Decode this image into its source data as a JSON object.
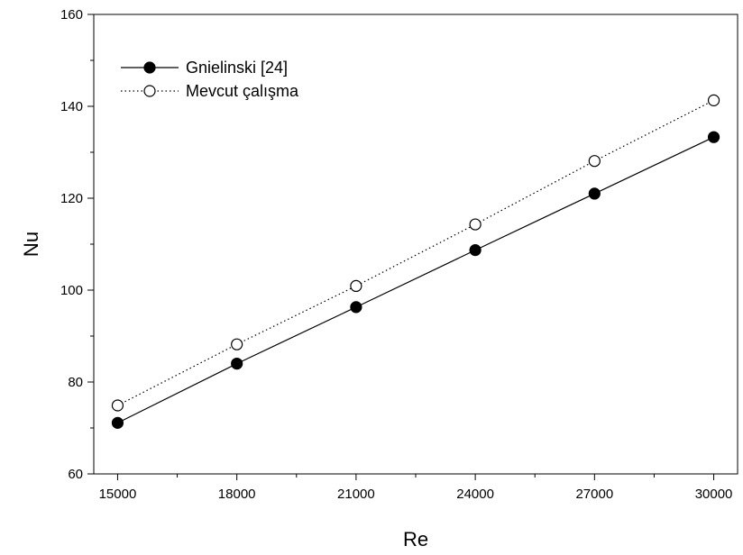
{
  "chart_data": {
    "type": "line",
    "title": "",
    "xlabel": "Re",
    "ylabel": "Nu",
    "x": [
      15000,
      18000,
      21000,
      24000,
      27000,
      30000
    ],
    "xlim": [
      14400,
      30600
    ],
    "ylim": [
      60,
      160
    ],
    "xticks": [
      15000,
      18000,
      21000,
      24000,
      27000,
      30000
    ],
    "xtick_labels": [
      "15000",
      "18000",
      "21000",
      "24000",
      "27000",
      "30000"
    ],
    "yticks": [
      60,
      80,
      100,
      120,
      140,
      160
    ],
    "ytick_labels": [
      "60",
      "80",
      "100",
      "120",
      "140",
      "160"
    ],
    "grid": false,
    "legend_position": "top-left",
    "series": [
      {
        "name": "Gnielinski [24]",
        "values": [
          71.1,
          84.0,
          96.3,
          108.7,
          121.0,
          133.3
        ],
        "line_style": "solid",
        "marker": "filled-circle",
        "color": "#000000"
      },
      {
        "name": "Mevcut çalışma",
        "values": [
          74.9,
          88.2,
          100.9,
          114.3,
          128.1,
          141.3
        ],
        "line_style": "dotted",
        "marker": "open-circle",
        "color": "#000000"
      }
    ]
  }
}
